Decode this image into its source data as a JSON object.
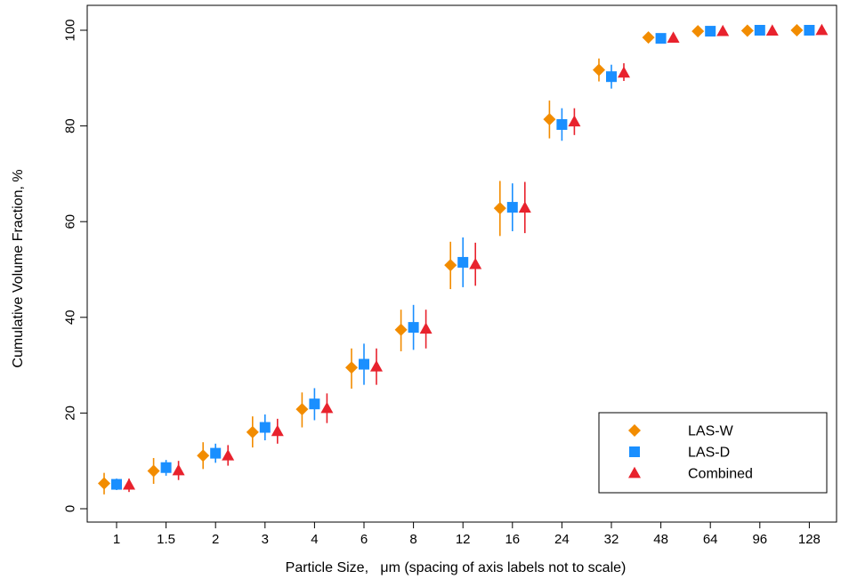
{
  "chart_data": {
    "type": "scatter",
    "xlabel": "Particle Size,   μm (spacing of axis labels not to scale)",
    "ylabel": "Cumulative Volume Fraction, %",
    "categories": [
      "1",
      "1.5",
      "2",
      "3",
      "4",
      "6",
      "8",
      "12",
      "16",
      "24",
      "32",
      "48",
      "64",
      "96",
      "128"
    ],
    "ylim": [
      0,
      100
    ],
    "yticks": [
      0,
      20,
      40,
      60,
      80,
      100
    ],
    "grid": false,
    "legend_position": "bottom-right",
    "series": [
      {
        "name": "LAS-W",
        "marker": "diamond",
        "color": "#f28c00",
        "values": [
          5.3,
          7.9,
          11.1,
          16.0,
          20.8,
          29.5,
          37.4,
          50.9,
          62.8,
          81.4,
          91.7,
          98.5,
          99.8,
          99.9,
          100.0
        ],
        "err_low": [
          3.0,
          5.2,
          8.3,
          12.8,
          17.0,
          25.1,
          32.9,
          45.9,
          57.0,
          77.4,
          89.3,
          97.9,
          99.5,
          99.7,
          99.8
        ],
        "err_high": [
          7.5,
          10.6,
          13.9,
          19.3,
          24.3,
          33.5,
          41.6,
          55.8,
          68.5,
          85.3,
          94.1,
          99.0,
          100.0,
          100.0,
          100.0
        ]
      },
      {
        "name": "LAS-D",
        "marker": "square",
        "color": "#1a8fff",
        "values": [
          5.1,
          8.6,
          11.6,
          17.0,
          21.9,
          30.2,
          37.9,
          51.5,
          63.0,
          80.3,
          90.3,
          98.3,
          99.8,
          100.0,
          100.0
        ],
        "err_low": [
          3.9,
          6.9,
          9.6,
          14.3,
          18.5,
          25.9,
          33.2,
          46.3,
          58.0,
          76.9,
          87.8,
          97.8,
          99.6,
          99.9,
          99.9
        ],
        "err_high": [
          6.3,
          10.2,
          13.6,
          19.7,
          25.2,
          34.5,
          42.6,
          56.7,
          68.0,
          83.7,
          92.8,
          98.8,
          100.0,
          100.0,
          100.0
        ]
      },
      {
        "name": "Combined",
        "marker": "triangle",
        "color": "#e8222d",
        "values": [
          5.0,
          8.0,
          11.1,
          16.2,
          21.0,
          29.7,
          37.6,
          51.1,
          62.9,
          80.9,
          91.1,
          98.4,
          99.8,
          99.9,
          100.0
        ],
        "err_low": [
          3.5,
          6.0,
          9.0,
          13.6,
          17.9,
          25.9,
          33.5,
          46.6,
          57.6,
          78.1,
          89.4,
          97.9,
          99.6,
          99.8,
          99.9
        ],
        "err_high": [
          6.3,
          10.0,
          13.3,
          18.8,
          24.1,
          33.5,
          41.6,
          55.6,
          68.3,
          83.7,
          93.1,
          98.9,
          100.0,
          100.0,
          100.0
        ]
      }
    ]
  }
}
